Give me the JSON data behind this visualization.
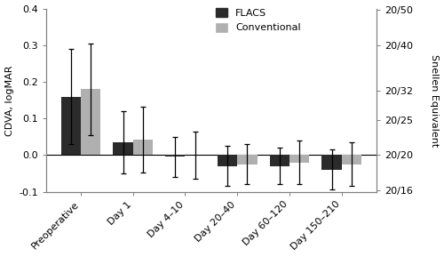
{
  "categories": [
    "Preoperative",
    "Day 1",
    "Day 4–10",
    "Day 20–40",
    "Day 60–120",
    "Day 150–210"
  ],
  "flacs_values": [
    0.16,
    0.035,
    -0.005,
    -0.03,
    -0.03,
    -0.04
  ],
  "conv_values": [
    0.18,
    0.042,
    0.0,
    -0.025,
    -0.02,
    -0.025
  ],
  "flacs_errors": [
    0.13,
    0.085,
    0.055,
    0.055,
    0.05,
    0.055
  ],
  "conv_errors": [
    0.125,
    0.09,
    0.065,
    0.055,
    0.06,
    0.06
  ],
  "flacs_color": "#2b2b2b",
  "conv_color": "#b0b0b0",
  "ylabel_left": "CDVA, logMAR",
  "ylabel_right": "Snellen Equivalent",
  "ylim": [
    -0.1,
    0.4
  ],
  "yticks_left": [
    -0.1,
    0.0,
    0.1,
    0.2,
    0.3,
    0.4
  ],
  "right_positions": [
    -0.097,
    0.0,
    0.097,
    0.176,
    0.301,
    0.398
  ],
  "right_labels": [
    "20/16",
    "20/20",
    "20/25",
    "20/32",
    "20/40",
    "20/50"
  ],
  "legend_labels": [
    "FLACS",
    "Conventional"
  ],
  "bar_width": 0.38,
  "background_color": "#ffffff"
}
